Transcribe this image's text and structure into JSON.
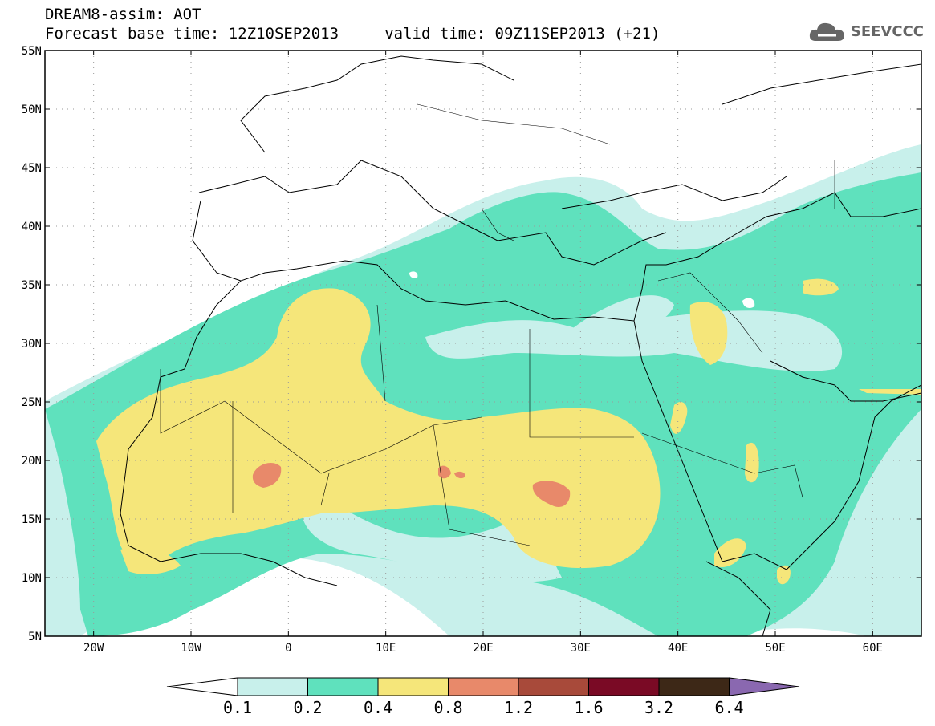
{
  "header": {
    "line1": "DREAM8-assim: AOT",
    "line2": "Forecast base time: 12Z10SEP2013     valid time: 09Z11SEP2013 (+21)"
  },
  "logo": {
    "text": "SEEVCCC",
    "icon": "cloud-icon"
  },
  "map": {
    "lon_range": [
      -25,
      65
    ],
    "lat_range": [
      5,
      55
    ],
    "lat_ticks": [
      "5N",
      "10N",
      "15N",
      "20N",
      "25N",
      "30N",
      "35N",
      "40N",
      "45N",
      "50N",
      "55N"
    ],
    "lon_ticks": [
      "20W",
      "10W",
      "0",
      "10E",
      "20E",
      "30E",
      "40E",
      "50E",
      "60E"
    ],
    "grid": "dotted"
  },
  "colorbar": {
    "labels": [
      "0.1",
      "0.2",
      "0.4",
      "0.8",
      "1.2",
      "1.6",
      "3.2",
      "6.4"
    ],
    "colors": [
      "#ffffff",
      "#c8f0eb",
      "#5fe1bd",
      "#f5e67a",
      "#e8896a",
      "#a84a3a",
      "#7a0a25",
      "#3d2817",
      "#8a68b0"
    ]
  }
}
